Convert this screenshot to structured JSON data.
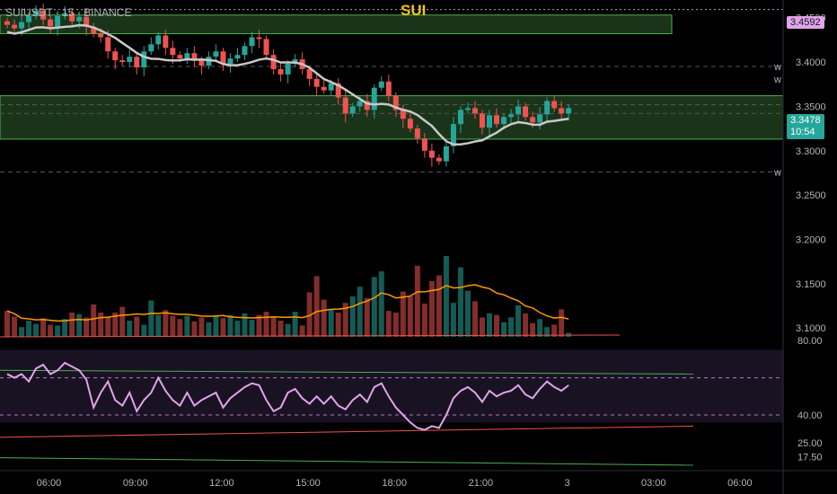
{
  "header": {
    "symbol_line": "SUIUSDT · 15 · BINANCE",
    "title": "SUI"
  },
  "price_tags": {
    "high_mark": "3.4592",
    "last_price": "3.3478",
    "countdown": "10:54"
  },
  "markers": [
    "w",
    "w",
    "w"
  ],
  "colors": {
    "up": "#26a69a",
    "down": "#ef5350",
    "zone_fill": "#1e3d1e",
    "zone_line": "#4caf50",
    "rsi": "#e1a4e8",
    "title": "#f5c518"
  },
  "chart_data": [
    {
      "type": "line",
      "role": "price (candlestick)",
      "title": "",
      "ylim": [
        3.09,
        3.47
      ],
      "y_ticks": [
        "3.4500",
        "3.4000",
        "3.3500",
        "3.3000",
        "3.2500",
        "3.2000",
        "3.1500",
        "3.1000"
      ],
      "x_ticks": [
        "06:00",
        "09:00",
        "12:00",
        "15:00",
        "18:00",
        "21:00",
        "3",
        "03:00",
        "06:00"
      ],
      "x_tick_hours": [
        6,
        9,
        12,
        15,
        18,
        21,
        24,
        27,
        30
      ],
      "x_range_hours": [
        4.3,
        31.5
      ],
      "zones": [
        {
          "from": 3.432,
          "to": 3.453
        },
        {
          "from": 3.313,
          "to": 3.362
        }
      ],
      "reference_lines": [
        3.4592,
        3.395,
        3.352,
        3.342,
        3.276
      ],
      "close": [
        3.442,
        3.438,
        3.445,
        3.452,
        3.458,
        3.448,
        3.44,
        3.452,
        3.455,
        3.446,
        3.451,
        3.44,
        3.432,
        3.428,
        3.412,
        3.402,
        3.4,
        3.406,
        3.394,
        3.412,
        3.42,
        3.43,
        3.416,
        3.408,
        3.404,
        3.41,
        3.402,
        3.396,
        3.406,
        3.412,
        3.398,
        3.404,
        3.408,
        3.418,
        3.428,
        3.426,
        3.408,
        3.392,
        3.386,
        3.398,
        3.403,
        3.392,
        3.381,
        3.372,
        3.368,
        3.376,
        3.36,
        3.342,
        3.35,
        3.356,
        3.346,
        3.371,
        3.378,
        3.362,
        3.346,
        3.336,
        3.325,
        3.314,
        3.3,
        3.292,
        3.288,
        3.305,
        3.33,
        3.346,
        3.348,
        3.342,
        3.326,
        3.34,
        3.33,
        3.338,
        3.341,
        3.35,
        3.338,
        3.332,
        3.341,
        3.356,
        3.348,
        3.342,
        3.348
      ],
      "volume": [
        0.32,
        0.25,
        0.12,
        0.2,
        0.16,
        0.23,
        0.15,
        0.14,
        0.22,
        0.3,
        0.28,
        0.24,
        0.4,
        0.3,
        0.25,
        0.3,
        0.37,
        0.2,
        0.25,
        0.15,
        0.45,
        0.27,
        0.33,
        0.26,
        0.22,
        0.26,
        0.19,
        0.24,
        0.18,
        0.27,
        0.23,
        0.27,
        0.2,
        0.29,
        0.21,
        0.27,
        0.31,
        0.25,
        0.2,
        0.16,
        0.31,
        0.14,
        0.55,
        0.75,
        0.46,
        0.34,
        0.3,
        0.42,
        0.5,
        0.62,
        0.48,
        0.74,
        0.81,
        0.32,
        0.3,
        0.56,
        0.5,
        0.88,
        0.41,
        0.69,
        0.76,
        1.0,
        0.42,
        0.86,
        0.57,
        0.44,
        0.24,
        0.29,
        0.27,
        0.18,
        0.24,
        0.39,
        0.29,
        0.17,
        0.22,
        0.12,
        0.15,
        0.34,
        0.05
      ]
    },
    {
      "type": "line",
      "role": "RSI",
      "title": "",
      "ylim": [
        12.0,
        82.0
      ],
      "y_ticks": [
        "80.00",
        "40.00",
        "25.00",
        "17.50"
      ],
      "values": [
        62,
        60,
        62,
        58,
        65,
        67,
        62,
        64,
        68,
        66,
        64,
        59,
        44,
        52,
        58,
        48,
        45,
        52,
        42,
        48,
        52,
        60,
        53,
        48,
        45,
        52,
        45,
        48,
        50,
        52,
        44,
        49,
        52,
        55,
        57,
        56,
        48,
        42,
        44,
        52,
        54,
        49,
        46,
        50,
        46,
        50,
        45,
        43,
        48,
        51,
        47,
        55,
        57,
        50,
        44,
        40,
        36,
        33,
        32,
        34,
        33,
        40,
        49,
        53,
        55,
        52,
        47,
        53,
        50,
        52,
        53,
        56,
        51,
        49,
        54,
        58,
        55,
        53,
        56
      ]
    }
  ]
}
